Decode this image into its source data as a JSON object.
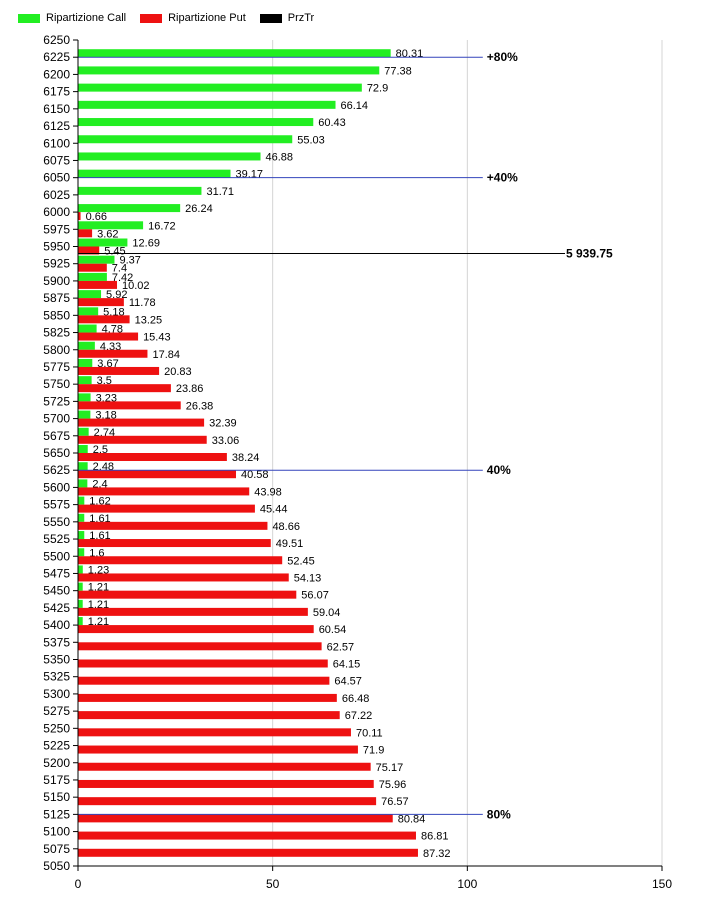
{
  "legend": {
    "call_label": "Ripartizione Call",
    "put_label": "Ripartizione Put",
    "price_label": "PrzTr",
    "call_color": "#22ee22",
    "put_color": "#ee1111",
    "price_color": "#000000"
  },
  "chart_data": {
    "type": "bar",
    "orientation": "horizontal",
    "title": "",
    "xlabel": "",
    "ylabel": "",
    "xlim": [
      0,
      150
    ],
    "x_ticks": [
      0,
      50,
      100,
      150
    ],
    "ylim": [
      5050,
      6250
    ],
    "grid": true,
    "legend_position": "top-left",
    "categories": [
      6250,
      6225,
      6200,
      6175,
      6150,
      6125,
      6100,
      6075,
      6050,
      6025,
      6000,
      5975,
      5950,
      5925,
      5900,
      5875,
      5850,
      5825,
      5800,
      5775,
      5750,
      5725,
      5700,
      5675,
      5650,
      5625,
      5600,
      5575,
      5550,
      5525,
      5500,
      5475,
      5450,
      5425,
      5400,
      5375,
      5350,
      5325,
      5300,
      5275,
      5250,
      5225,
      5200,
      5175,
      5150,
      5125,
      5100,
      5075,
      5050
    ],
    "series": [
      {
        "name": "Ripartizione Call",
        "color": "#22ee22",
        "values": [
          null,
          80.31,
          77.38,
          72.9,
          66.14,
          60.43,
          55.03,
          46.88,
          39.17,
          31.71,
          26.24,
          16.72,
          12.69,
          9.37,
          7.42,
          5.92,
          5.18,
          4.78,
          4.33,
          3.67,
          3.5,
          3.23,
          3.18,
          2.74,
          2.5,
          2.48,
          2.4,
          1.62,
          1.61,
          1.61,
          1.6,
          1.23,
          1.21,
          1.21,
          1.21,
          null,
          null,
          null,
          null,
          null,
          null,
          null,
          null,
          null,
          null,
          null,
          null,
          null,
          null
        ]
      },
      {
        "name": "Ripartizione Put",
        "color": "#ee1111",
        "values": [
          null,
          null,
          null,
          null,
          null,
          null,
          null,
          null,
          null,
          null,
          0.66,
          3.62,
          5.45,
          7.4,
          10.02,
          11.78,
          13.25,
          15.43,
          17.84,
          20.83,
          23.86,
          26.38,
          32.39,
          33.06,
          38.24,
          40.58,
          43.98,
          45.44,
          48.66,
          49.51,
          52.45,
          54.13,
          56.07,
          59.04,
          60.54,
          62.57,
          64.15,
          64.57,
          66.48,
          67.22,
          70.11,
          71.9,
          75.17,
          75.96,
          76.57,
          80.84,
          86.81,
          87.32,
          null
        ]
      }
    ],
    "price_line": {
      "name": "PrzTr",
      "value": 5939.75,
      "label": "5 939.75"
    },
    "percent_lines": [
      {
        "strike": 6225,
        "label": "+80%"
      },
      {
        "strike": 6050,
        "label": "+40%"
      },
      {
        "strike": 5625,
        "label": "40%"
      },
      {
        "strike": 5125,
        "label": "80%"
      }
    ]
  }
}
